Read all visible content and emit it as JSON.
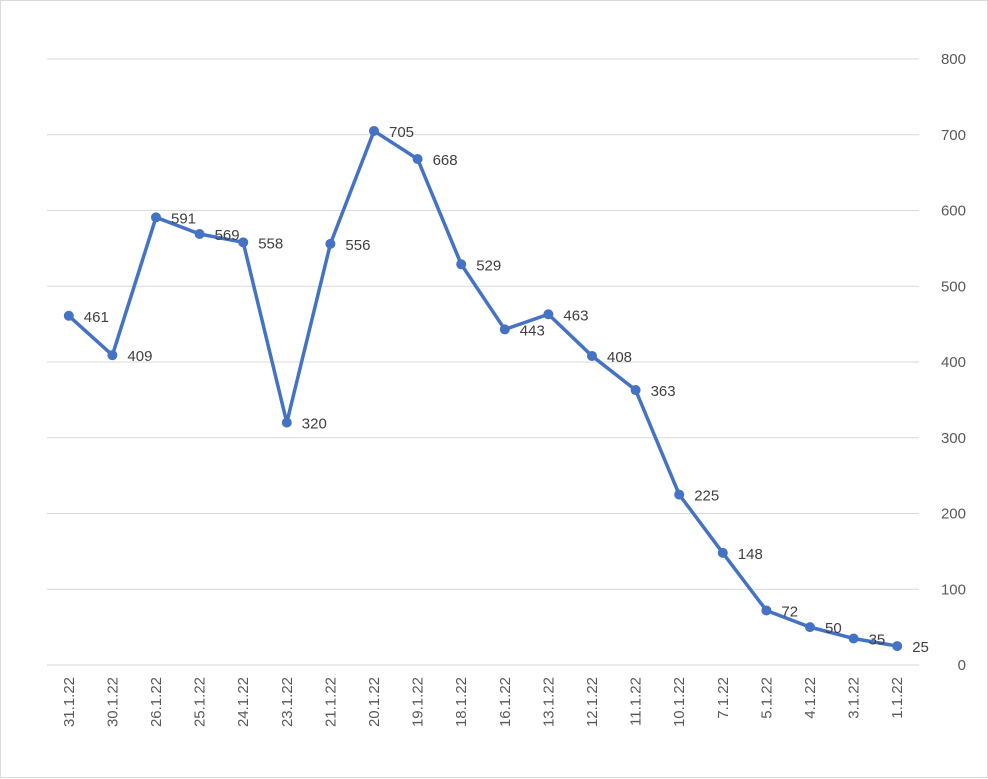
{
  "chart_data": {
    "type": "line",
    "categories": [
      "31.1.22",
      "30.1.22",
      "26.1.22",
      "25.1.22",
      "24.1.22",
      "23.1.22",
      "21.1.22",
      "20.1.22",
      "19.1.22",
      "18.1.22",
      "16.1.22",
      "13.1.22",
      "12.1.22",
      "11.1.22",
      "10.1.22",
      "7.1.22",
      "5.1.22",
      "4.1.22",
      "3.1.22",
      "1.1.22"
    ],
    "series": [
      {
        "values": [
          461,
          409,
          591,
          569,
          558,
          320,
          556,
          705,
          668,
          529,
          443,
          463,
          408,
          363,
          225,
          148,
          72,
          50,
          35,
          25
        ]
      }
    ],
    "value_labels": [
      "461",
      "409",
      "591",
      "569",
      "558",
      "320",
      "556",
      "705",
      "668",
      "529",
      "443",
      "463",
      "408",
      "363",
      "225",
      "148",
      "72",
      "50",
      "35",
      "25"
    ],
    "y_ticks": [
      "0",
      "100",
      "200",
      "300",
      "400",
      "500",
      "600",
      "700",
      "800"
    ],
    "ylim": [
      0,
      800
    ],
    "y_axis_position": "right",
    "grid": true,
    "legend": "none",
    "data_labels": true,
    "line_color": "#4472c4",
    "grid_color": "#d9d9d9"
  }
}
